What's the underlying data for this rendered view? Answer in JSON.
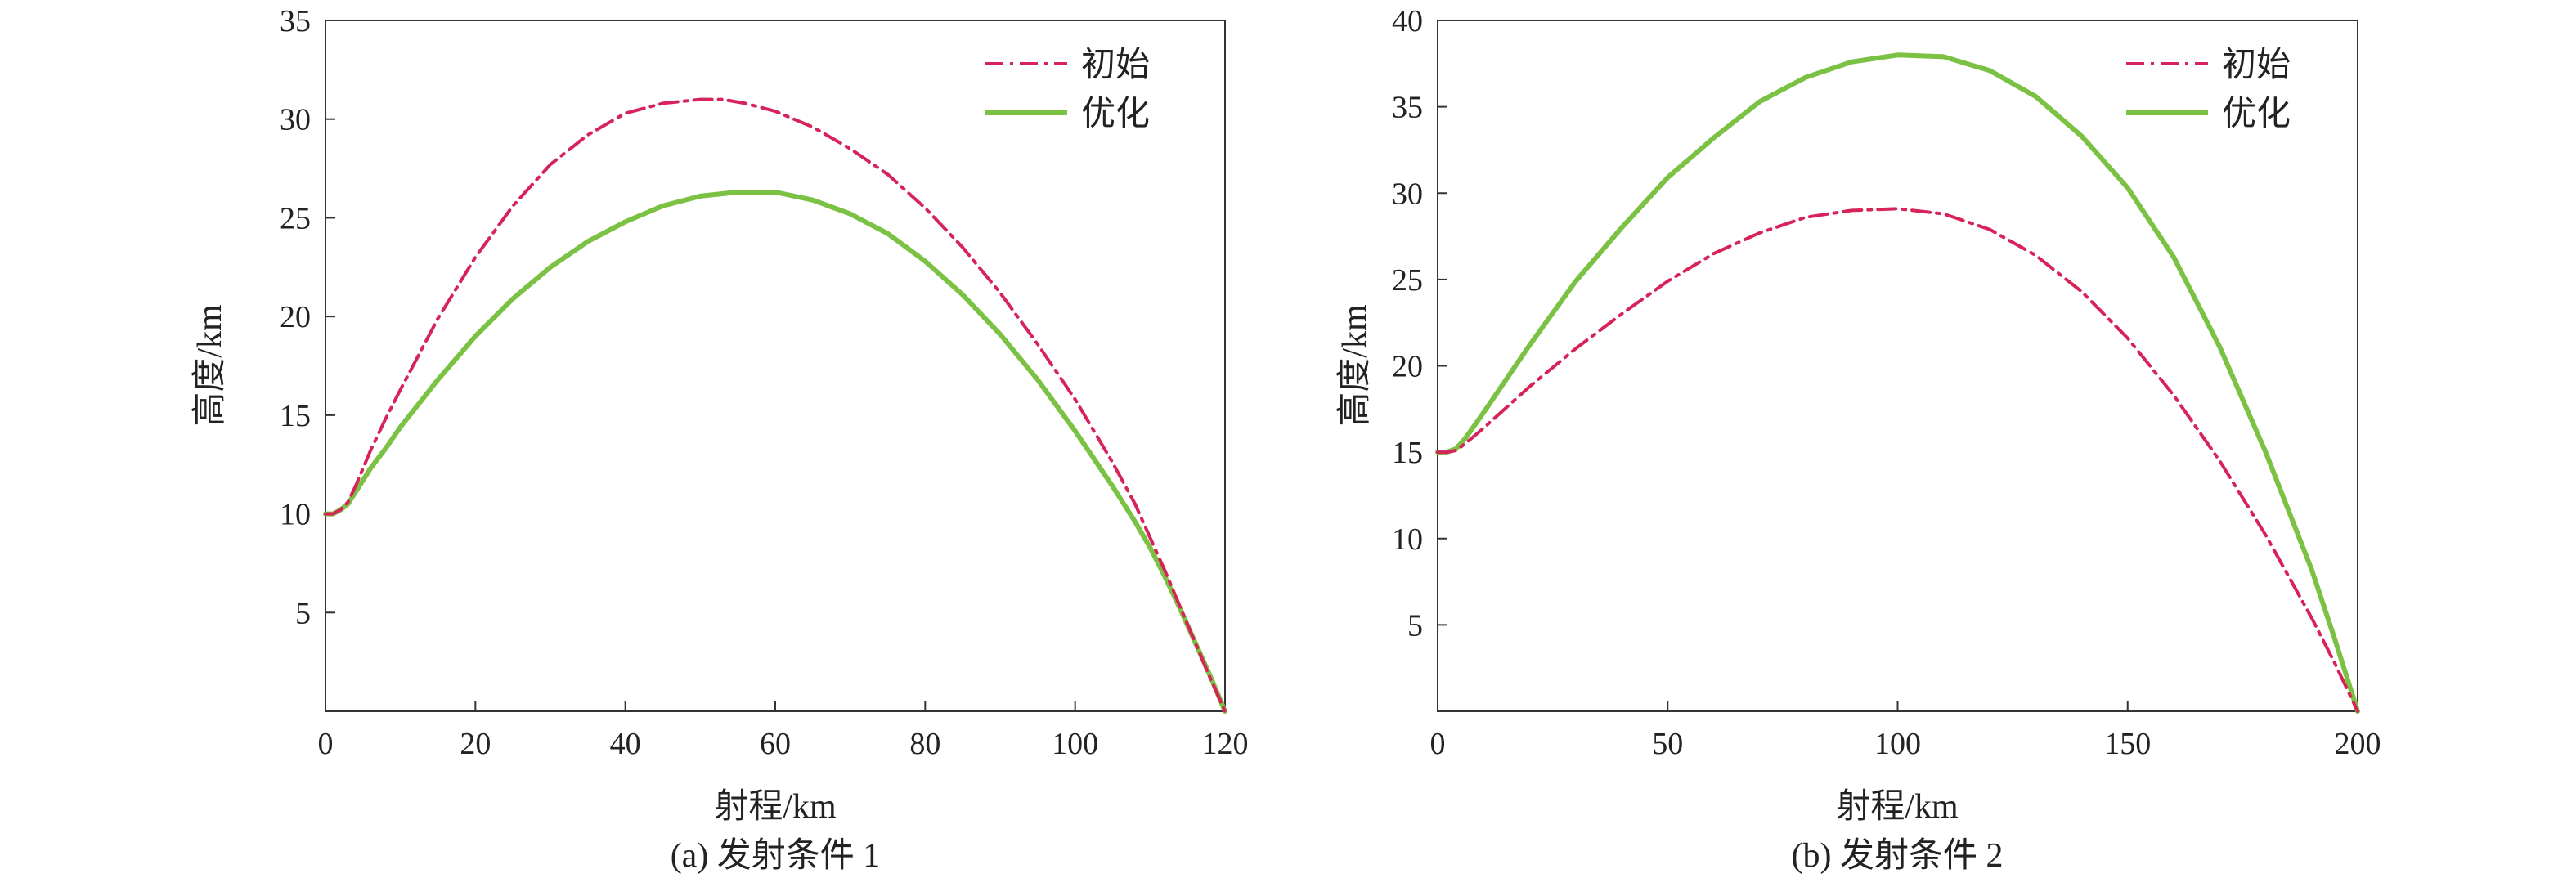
{
  "chart_data": [
    {
      "type": "line",
      "caption": "(a) 发射条件 1",
      "xlabel": "射程/km",
      "ylabel": "高度/km",
      "xlim": [
        0,
        120
      ],
      "ylim": [
        0,
        35
      ],
      "xticks": [
        0,
        20,
        40,
        60,
        80,
        100,
        120
      ],
      "yticks": [
        5,
        10,
        15,
        20,
        25,
        30,
        35
      ],
      "grid": false,
      "legend": "top-right",
      "series": [
        {
          "name": "初始",
          "color": "#d6245a",
          "style": "dashdot",
          "x": [
            0,
            1,
            2,
            3,
            4,
            6,
            8,
            10,
            15,
            20,
            25,
            30,
            35,
            40,
            45,
            50,
            53,
            56,
            60,
            65,
            70,
            75,
            80,
            85,
            90,
            95,
            100,
            105,
            108,
            110,
            112,
            114,
            116,
            118,
            120
          ],
          "y": [
            10,
            10,
            10.2,
            10.6,
            11.4,
            13.2,
            14.8,
            16.3,
            19.9,
            23.0,
            25.6,
            27.7,
            29.2,
            30.3,
            30.8,
            31.0,
            31.0,
            30.8,
            30.4,
            29.6,
            28.5,
            27.2,
            25.5,
            23.5,
            21.2,
            18.6,
            15.8,
            12.6,
            10.5,
            8.8,
            7.1,
            5.3,
            3.5,
            1.7,
            0
          ]
        },
        {
          "name": "优化",
          "color": "#7bc143",
          "style": "solid",
          "x": [
            0,
            1,
            2,
            3,
            4,
            6,
            8,
            10,
            15,
            20,
            25,
            30,
            35,
            40,
            45,
            50,
            55,
            58,
            60,
            65,
            70,
            75,
            80,
            85,
            90,
            95,
            100,
            105,
            108,
            110,
            112,
            114,
            116,
            118,
            120
          ],
          "y": [
            10,
            10,
            10.2,
            10.5,
            11.1,
            12.3,
            13.3,
            14.4,
            16.8,
            19.0,
            20.9,
            22.5,
            23.8,
            24.8,
            25.6,
            26.1,
            26.3,
            26.3,
            26.3,
            25.9,
            25.2,
            24.2,
            22.8,
            21.1,
            19.1,
            16.8,
            14.2,
            11.4,
            9.6,
            8.3,
            6.8,
            5.2,
            3.5,
            1.8,
            0
          ]
        }
      ]
    },
    {
      "type": "line",
      "caption": "(b) 发射条件 2",
      "xlabel": "射程/km",
      "ylabel": "高度/km",
      "xlim": [
        0,
        200
      ],
      "ylim": [
        0,
        40
      ],
      "xticks": [
        0,
        50,
        100,
        150,
        200
      ],
      "yticks": [
        5,
        10,
        15,
        20,
        25,
        30,
        35,
        40
      ],
      "grid": false,
      "legend": "top-right",
      "series": [
        {
          "name": "初始",
          "color": "#d6245a",
          "style": "dashdot",
          "x": [
            0,
            2,
            4,
            6,
            10,
            20,
            30,
            40,
            50,
            60,
            70,
            80,
            90,
            100,
            110,
            120,
            130,
            140,
            150,
            160,
            170,
            180,
            190,
            195,
            200
          ],
          "y": [
            15,
            15,
            15.1,
            15.5,
            16.4,
            18.8,
            21.0,
            23.0,
            24.9,
            26.5,
            27.7,
            28.6,
            29.0,
            29.1,
            28.8,
            27.9,
            26.4,
            24.3,
            21.6,
            18.3,
            14.5,
            10.2,
            5.4,
            2.8,
            0
          ]
        },
        {
          "name": "优化",
          "color": "#7bc143",
          "style": "solid",
          "x": [
            0,
            2,
            4,
            6,
            10,
            20,
            30,
            40,
            50,
            60,
            70,
            80,
            90,
            100,
            110,
            120,
            130,
            140,
            150,
            160,
            170,
            180,
            190,
            195,
            200
          ],
          "y": [
            15,
            15,
            15.2,
            15.8,
            17.3,
            21.2,
            24.9,
            28.0,
            30.9,
            33.2,
            35.3,
            36.7,
            37.6,
            38.0,
            37.9,
            37.1,
            35.6,
            33.3,
            30.3,
            26.3,
            21.1,
            15.0,
            8.2,
            4.2,
            0
          ]
        }
      ]
    }
  ]
}
